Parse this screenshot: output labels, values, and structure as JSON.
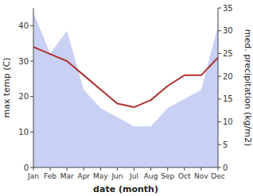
{
  "chart_data": {
    "type": "line",
    "x_label": "date (month)",
    "y_label": "max temp (C)",
    "y2_label": "med. precipitation (kg/m2)",
    "categories": [
      "Jan",
      "Feb",
      "Mar",
      "Apr",
      "May",
      "Jun",
      "Jul",
      "Aug",
      "Sep",
      "Oct",
      "Nov",
      "Dec"
    ],
    "series": [
      {
        "type": "area",
        "axis": "y2",
        "color": "#c8d0f4",
        "values": [
          34,
          25,
          30,
          17,
          13,
          11,
          9,
          9,
          13,
          15,
          17,
          31
        ]
      },
      {
        "type": "line",
        "color": "#b03030",
        "values": [
          34,
          32,
          30,
          26,
          22,
          18,
          17,
          19,
          23,
          26,
          26,
          31
        ]
      }
    ],
    "ylim": [
      0,
      45
    ],
    "yticks": [
      0,
      10,
      20,
      30,
      40
    ],
    "y2lim": [
      0,
      35
    ],
    "y2ticks": [
      0,
      5,
      10,
      15,
      20,
      25,
      30,
      35
    ],
    "grid": false
  }
}
